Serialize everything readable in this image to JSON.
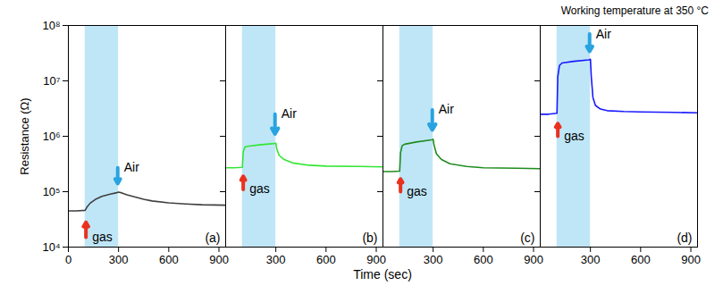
{
  "chart_data": {
    "type": "line",
    "title": "Working temperature at 350 °C",
    "xlabel": "Time (sec)",
    "ylabel": "Resistance (Ω)",
    "log": "y",
    "xlim": [
      0,
      940
    ],
    "ylim": [
      10000,
      100000000
    ],
    "yticks": [
      {
        "value": 10000,
        "label": "10⁴"
      },
      {
        "value": 100000,
        "label": "10⁵"
      },
      {
        "value": 1000000,
        "label": "10⁶"
      },
      {
        "value": 10000000,
        "label": "10⁷"
      },
      {
        "value": 100000000,
        "label": "10⁸"
      }
    ],
    "shaded": [
      100,
      300
    ],
    "panels": [
      {
        "label": "(a)",
        "xticks": [
          0,
          300,
          600,
          900
        ],
        "series": [
          {
            "color": "#404040",
            "x": [
              0,
              50,
              100,
              110,
              130,
              160,
              200,
              250,
              290,
              300,
              320,
              350,
              400,
              450,
              500,
              600,
              700,
              800,
              940
            ],
            "values": [
              45000,
              45000,
              46000,
              52000,
              62000,
              72000,
              82000,
              90000,
              96000,
              98000,
              95000,
              88000,
              80000,
              73000,
              68000,
              63000,
              60000,
              58000,
              57000
            ]
          }
        ],
        "annotations": [
          {
            "text": "gas",
            "x": 105,
            "y_from": 15000,
            "y_to": 28000,
            "color": "#e8321e"
          },
          {
            "text": "Air",
            "x": 295,
            "y_from": 270000,
            "y_to": 140000,
            "color": "#29a3e0"
          }
        ]
      },
      {
        "label": "(b)",
        "xticks": [
          300,
          600,
          900
        ],
        "tick_labels": "x",
        "series": [
          {
            "color": "#33e633",
            "x": [
              0,
              50,
              100,
              105,
              115,
              130,
              200,
              290,
              300,
              305,
              320,
              350,
              400,
              500,
              600,
              800,
              940
            ],
            "values": [
              270000,
              270000,
              275000,
              520000,
              640000,
              660000,
              700000,
              740000,
              750000,
              600000,
              450000,
              380000,
              330000,
              300000,
              290000,
              285000,
              280000
            ]
          }
        ],
        "annotations": [
          {
            "text": "gas",
            "x": 105,
            "y_from": 110000,
            "y_to": 190000,
            "color": "#e8321e"
          },
          {
            "text": "Air",
            "x": 295,
            "y_from": 2500000,
            "y_to": 1100000,
            "color": "#29a3e0"
          }
        ]
      },
      {
        "label": "(c)",
        "xticks": [
          300,
          600,
          900
        ],
        "tick_labels": "x",
        "series": [
          {
            "color": "#1f8c1f",
            "x": [
              0,
              50,
              100,
              105,
              115,
              130,
              200,
              290,
              300,
              305,
              320,
              350,
              400,
              500,
              600,
              800,
              940
            ],
            "values": [
              230000,
              230000,
              235000,
              500000,
              680000,
              720000,
              790000,
              860000,
              880000,
              700000,
              480000,
              380000,
              320000,
              285000,
              270000,
              265000,
              260000
            ]
          }
        ],
        "annotations": [
          {
            "text": "gas",
            "x": 105,
            "y_from": 100000,
            "y_to": 170000,
            "color": "#e8321e"
          },
          {
            "text": "Air",
            "x": 295,
            "y_from": 3000000,
            "y_to": 1300000,
            "color": "#29a3e0"
          }
        ]
      },
      {
        "label": "(d)",
        "xticks": [
          300,
          600,
          900
        ],
        "tick_labels": "x",
        "series": [
          {
            "color": "#1a1aff",
            "x": [
              0,
              50,
              100,
              105,
              115,
              130,
              200,
              290,
              300,
              305,
              315,
              330,
              360,
              400,
              500,
              600,
              800,
              940
            ],
            "values": [
              2500000,
              2500000,
              2600000,
              12000000,
              19000000,
              21000000,
              22500000,
              24000000,
              24500000,
              12000000,
              5000000,
              3600000,
              3100000,
              2900000,
              2800000,
              2750000,
              2700000,
              2650000
            ]
          }
        ],
        "annotations": [
          {
            "text": "gas",
            "x": 105,
            "y_from": 1000000,
            "y_to": 1700000,
            "color": "#e8321e"
          },
          {
            "text": "Air",
            "x": 295,
            "y_from": 70000000,
            "y_to": 34000000,
            "color": "#29a3e0"
          }
        ]
      }
    ]
  }
}
